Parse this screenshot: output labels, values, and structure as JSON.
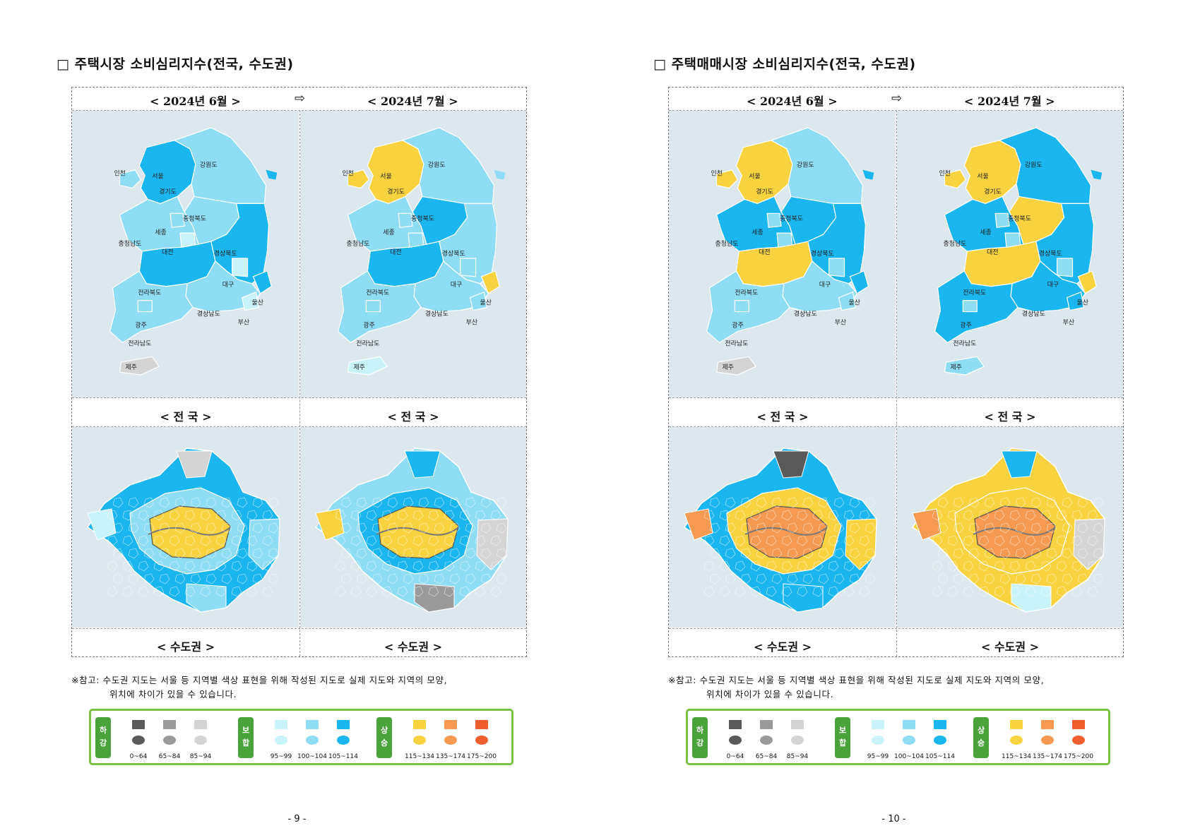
{
  "pages": [
    {
      "title": "□ 주택시장 소비심리지수(전국, 수도권)",
      "month_before": "< 2024년 6월 >",
      "month_after": "< 2024년 7월 >",
      "arrow": "⇨",
      "caption_nation": "< 전  국 >",
      "caption_capital": "< 수도권 >",
      "page_number": "- 9 -"
    },
    {
      "title": "□ 주택매매시장 소비심리지수(전국, 수도권)",
      "month_before": "< 2024년 6월 >",
      "month_after": "< 2024년 7월 >",
      "arrow": "⇨",
      "caption_nation": "< 전  국 >",
      "caption_capital": "< 수도권 >",
      "page_number": "- 10 -"
    }
  ],
  "note_line1": "※참고: 수도권 지도는 서울 등 지역별 색상 표현을 위해 작성된 지도로 실제 지도와 지역의 모양,",
  "note_line2": "위치에 차이가 있을 수 있습니다.",
  "region_labels": {
    "incheon": "인천",
    "seoul": "서울",
    "gangwon": "강원도",
    "gyeonggi": "경기도",
    "chungbuk": "충청북도",
    "sejong": "세종",
    "chungnam": "충청남도",
    "daejeon": "대전",
    "gyeongbuk": "경상북도",
    "daegu": "대구",
    "jeonbuk": "전라북도",
    "ulsan": "울산",
    "gyeongnam": "경상남도",
    "gwangju": "광주",
    "busan": "부산",
    "jeonnam": "전라남도",
    "jeju": "제주"
  },
  "legend": {
    "groups": [
      {
        "tag": "하\n강",
        "items": [
          {
            "range": "0~64",
            "color": "#5a5a5a"
          },
          {
            "range": "65~84",
            "color": "#9a9a9a"
          },
          {
            "range": "85~94",
            "color": "#d4d4d4"
          }
        ]
      },
      {
        "tag": "보\n합",
        "items": [
          {
            "range": "95~99",
            "color": "#c9f3fb"
          },
          {
            "range": "100~104",
            "color": "#8fdcf5"
          },
          {
            "range": "105~114",
            "color": "#1ab6f0"
          }
        ]
      },
      {
        "tag": "상\n승",
        "items": [
          {
            "range": "115~134",
            "color": "#f8d23f"
          },
          {
            "range": "135~174",
            "color": "#f59a50"
          },
          {
            "range": "175~200",
            "color": "#ef5e2e"
          }
        ]
      }
    ]
  },
  "maps": {
    "p1_jun": {
      "gyeonggi": "#1ab6f0",
      "seoul": "#f8d23f",
      "incheon": "#8fdcf5",
      "gangwon": "#8fdcf5",
      "chungbuk": "#8fdcf5",
      "chungnam": "#8fdcf5",
      "sejong": "#8fdcf5",
      "daejeon": "#c9f3fb",
      "gyeongbuk": "#1ab6f0",
      "daegu": "#c9f3fb",
      "jeonbuk": "#1ab6f0",
      "ulsan": "#1ab6f0",
      "gyeongnam": "#8fdcf5",
      "busan": "#c9f3fb",
      "jeonnam": "#8fdcf5",
      "jeju": "#d4d4d4"
    },
    "p1_jul": {
      "gyeonggi": "#f8d23f",
      "seoul": "#f8d23f",
      "incheon": "#f8d23f",
      "gangwon": "#8fdcf5",
      "chungbuk": "#1ab6f0",
      "chungnam": "#8fdcf5",
      "sejong": "#8fdcf5",
      "daejeon": "#8fdcf5",
      "gyeongbuk": "#8fdcf5",
      "daegu": "#8fdcf5",
      "jeonbuk": "#1ab6f0",
      "ulsan": "#f8d23f",
      "gyeongnam": "#8fdcf5",
      "busan": "#8fdcf5",
      "jeonnam": "#8fdcf5",
      "jeju": "#c9f3fb"
    },
    "p2_jun": {
      "gyeonggi": "#f8d23f",
      "seoul": "#f8d23f",
      "incheon": "#f8d23f",
      "gangwon": "#8fdcf5",
      "chungbuk": "#1ab6f0",
      "chungnam": "#1ab6f0",
      "sejong": "#8fdcf5",
      "daejeon": "#8fdcf5",
      "gyeongbuk": "#1ab6f0",
      "daegu": "#8fdcf5",
      "jeonbuk": "#f8d23f",
      "ulsan": "#1ab6f0",
      "gyeongnam": "#8fdcf5",
      "busan": "#8fdcf5",
      "jeonnam": "#8fdcf5",
      "jeju": "#d4d4d4"
    },
    "p2_jul": {
      "gyeonggi": "#f8d23f",
      "seoul": "#f59a50",
      "incheon": "#f8d23f",
      "gangwon": "#1ab6f0",
      "chungbuk": "#f8d23f",
      "chungnam": "#1ab6f0",
      "sejong": "#8fdcf5",
      "daejeon": "#8fdcf5",
      "gyeongbuk": "#1ab6f0",
      "daegu": "#8fdcf5",
      "jeonbuk": "#f8d23f",
      "ulsan": "#f8d23f",
      "gyeongnam": "#1ab6f0",
      "busan": "#1ab6f0",
      "jeonnam": "#1ab6f0",
      "jeju": "#8fdcf5"
    },
    "cap_p1_jun": {
      "base": "#1ab6f0",
      "core": "#f8d23f",
      "ring": "#8fdcf5",
      "west": "#c9f3fb",
      "north": "#d4d4d4",
      "east": "#8fdcf5",
      "south": "#8fdcf5"
    },
    "cap_p1_jul": {
      "base": "#8fdcf5",
      "core": "#f8d23f",
      "ring": "#1ab6f0",
      "west": "#f8d23f",
      "north": "#1ab6f0",
      "east": "#d4d4d4",
      "south": "#9a9a9a"
    },
    "cap_p2_jun": {
      "base": "#1ab6f0",
      "core": "#f59a50",
      "ring": "#f8d23f",
      "west": "#f59a50",
      "north": "#5a5a5a",
      "east": "#f8d23f",
      "south": "#1ab6f0"
    },
    "cap_p2_jul": {
      "base": "#f8d23f",
      "core": "#f59a50",
      "ring": "#f8d23f",
      "west": "#f59a50",
      "north": "#1ab6f0",
      "east": "#d4d4d4",
      "south": "#c9f3fb"
    }
  }
}
